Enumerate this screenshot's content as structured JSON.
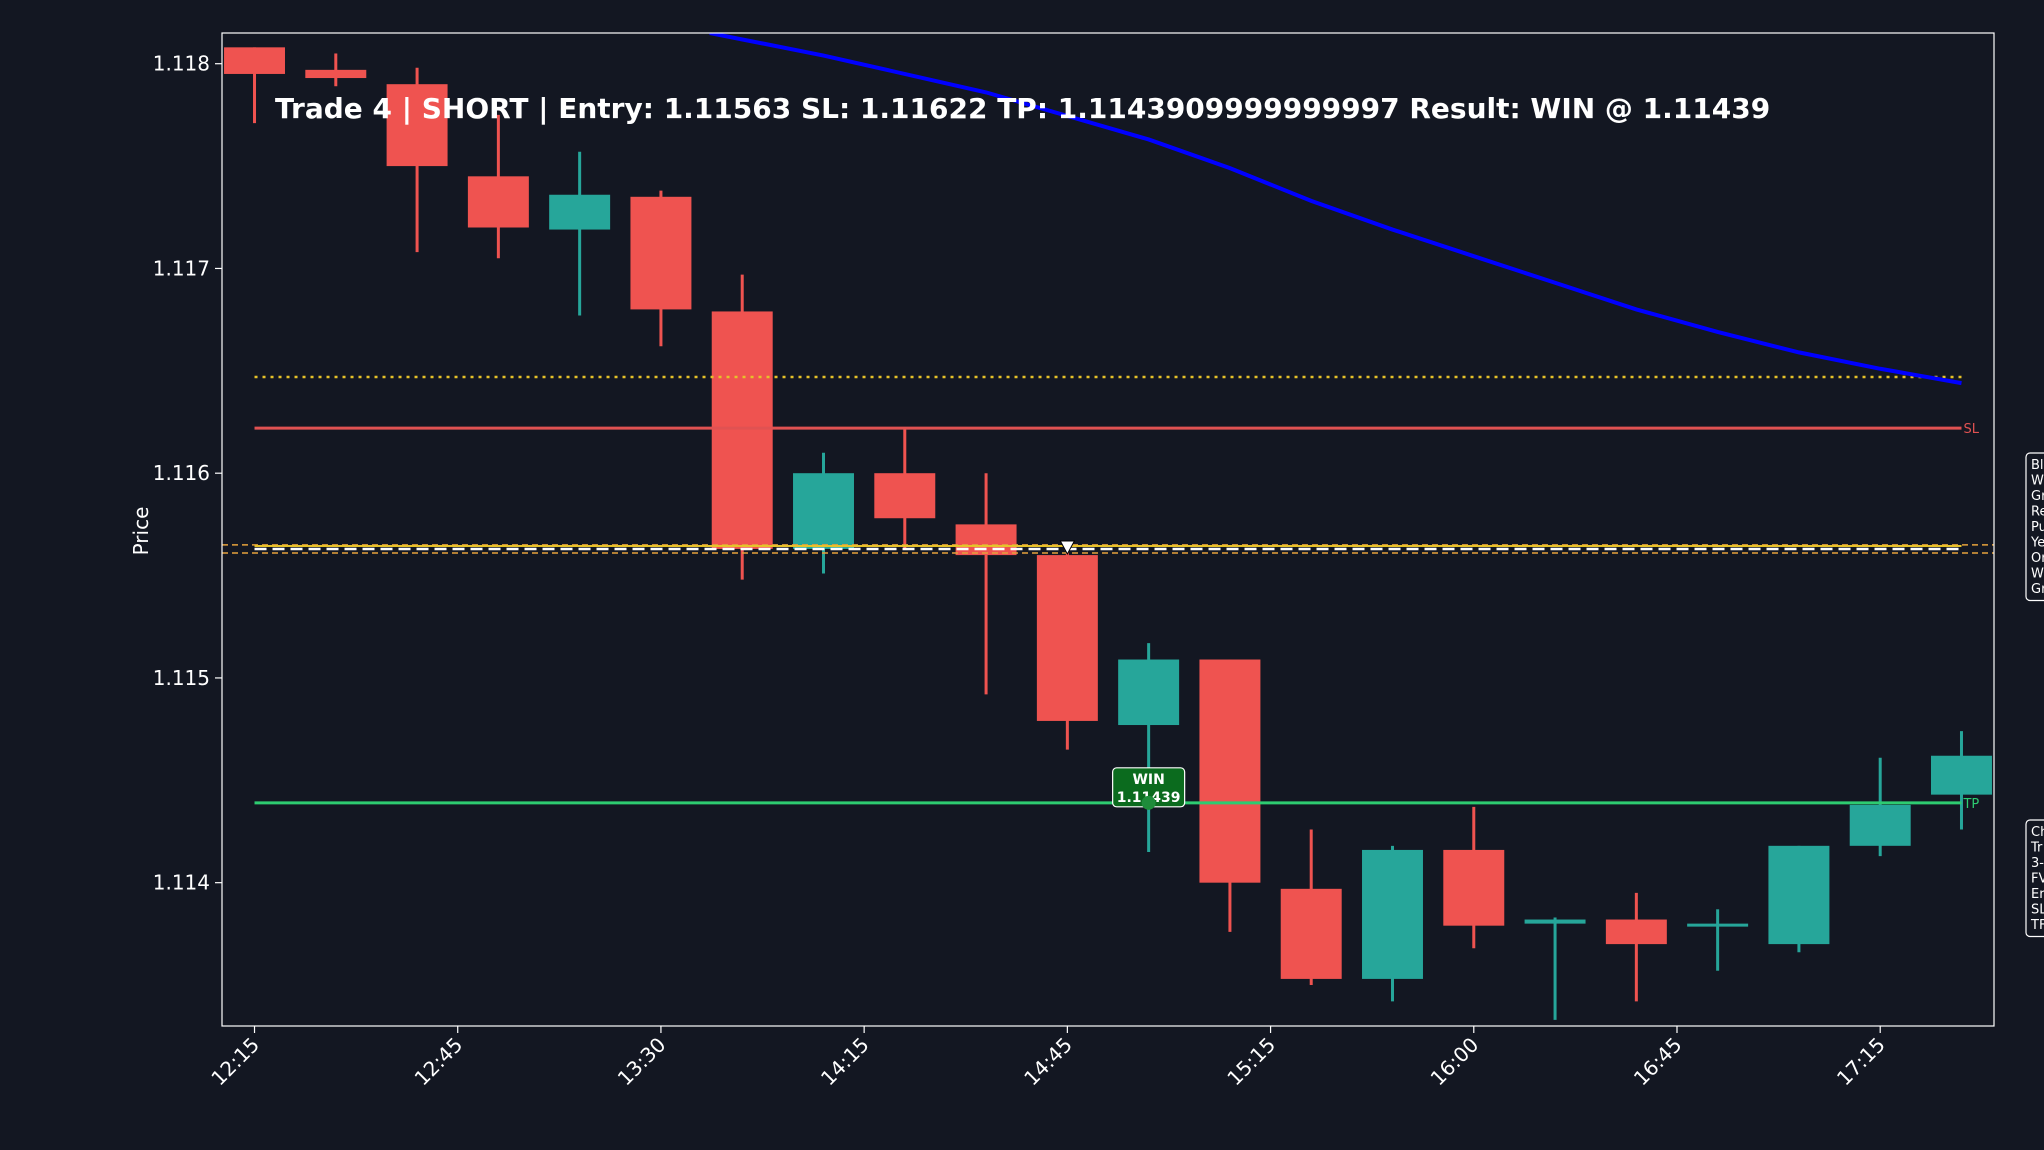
{
  "chart_data": {
    "type": "candlestick",
    "title": "Trade 4 | SHORT | Entry: 1.11563 SL: 1.11622 TP: 1.1143909999999997 Result: WIN @ 1.11439",
    "ylabel": "Price",
    "xlabel": "",
    "ylim": [
      1.1133,
      1.11815
    ],
    "y_ticks": [
      1.114,
      1.115,
      1.116,
      1.117,
      1.118
    ],
    "y_tick_labels": [
      "1.114",
      "1.115",
      "1.116",
      "1.117",
      "1.118"
    ],
    "x_tick_labels": [
      "12:15",
      "12:45",
      "13:30",
      "14:15",
      "14:45",
      "15:15",
      "16:00",
      "16:45",
      "17:15"
    ],
    "x_tick_indices": [
      0,
      2.5,
      5,
      7.5,
      10,
      12.5,
      15,
      17.5,
      20
    ],
    "x_range": [
      -0.4,
      21.4
    ],
    "candles": [
      {
        "o": 1.11808,
        "h": 1.11808,
        "l": 1.11771,
        "c": 1.11795
      },
      {
        "o": 1.11797,
        "h": 1.11805,
        "l": 1.11789,
        "c": 1.11793
      },
      {
        "o": 1.1179,
        "h": 1.11798,
        "l": 1.11708,
        "c": 1.1175
      },
      {
        "o": 1.11745,
        "h": 1.11775,
        "l": 1.11705,
        "c": 1.1172
      },
      {
        "o": 1.11719,
        "h": 1.11757,
        "l": 1.11677,
        "c": 1.11736
      },
      {
        "o": 1.11735,
        "h": 1.11738,
        "l": 1.11662,
        "c": 1.1168
      },
      {
        "o": 1.11679,
        "h": 1.11697,
        "l": 1.11548,
        "c": 1.11563
      },
      {
        "o": 1.11563,
        "h": 1.1161,
        "l": 1.11551,
        "c": 1.116
      },
      {
        "o": 1.116,
        "h": 1.11622,
        "l": 1.11563,
        "c": 1.11578
      },
      {
        "o": 1.11575,
        "h": 1.116,
        "l": 1.11492,
        "c": 1.1156
      },
      {
        "o": 1.1156,
        "h": 1.11563,
        "l": 1.11465,
        "c": 1.11479
      },
      {
        "o": 1.11477,
        "h": 1.11517,
        "l": 1.11415,
        "c": 1.11509
      },
      {
        "o": 1.11509,
        "h": 1.11509,
        "l": 1.11376,
        "c": 1.114
      },
      {
        "o": 1.11397,
        "h": 1.11426,
        "l": 1.1135,
        "c": 1.11353
      },
      {
        "o": 1.11353,
        "h": 1.11418,
        "l": 1.11342,
        "c": 1.11416
      },
      {
        "o": 1.11416,
        "h": 1.11437,
        "l": 1.11368,
        "c": 1.11379
      },
      {
        "o": 1.1138,
        "h": 1.11383,
        "l": 1.11333,
        "c": 1.11382
      },
      {
        "o": 1.11382,
        "h": 1.11395,
        "l": 1.11342,
        "c": 1.1137
      },
      {
        "o": 1.1138,
        "h": 1.11387,
        "l": 1.11357,
        "c": 1.1138
      },
      {
        "o": 1.1137,
        "h": 1.11418,
        "l": 1.11366,
        "c": 1.11418
      },
      {
        "o": 1.11418,
        "h": 1.11461,
        "l": 1.11413,
        "c": 1.11438
      },
      {
        "o": 1.11443,
        "h": 1.11474,
        "l": 1.11426,
        "c": 1.11462
      }
    ],
    "blue_line": {
      "color": "#0000ff",
      "points": [
        [
          5.6,
          1.11815
        ],
        [
          7,
          1.11804
        ],
        [
          9,
          1.11786
        ],
        [
          11,
          1.11763
        ],
        [
          12,
          1.11749
        ],
        [
          13,
          1.11733
        ],
        [
          14,
          1.11719
        ],
        [
          15,
          1.11706
        ],
        [
          16,
          1.11693
        ],
        [
          17,
          1.1168
        ],
        [
          18,
          1.11669
        ],
        [
          19,
          1.11659
        ],
        [
          20,
          1.11651
        ],
        [
          21,
          1.11644
        ]
      ]
    },
    "levels": {
      "yellow_dotted": {
        "value": 1.11647,
        "color": "#e6c229"
      },
      "sl": {
        "value": 1.11622,
        "color": "#e05252",
        "label": "SL"
      },
      "entry": {
        "value": 1.11563,
        "color": "#ffffff"
      },
      "zone_top": {
        "value": 1.11565,
        "color": "#e6a23c"
      },
      "zone_bottom": {
        "value": 1.11561,
        "color": "#e6a23c"
      },
      "tp": {
        "value": 1.11439,
        "color": "#2ecc71",
        "label": "TP"
      }
    },
    "entry_marker": {
      "x": 10,
      "y": 1.11563
    },
    "exit_marker": {
      "x": 11,
      "y": 1.11439,
      "label_line1": "WIN",
      "label_line2": "1.11439"
    },
    "colors": {
      "bull": "#26a69a",
      "bear": "#ef5350",
      "background": "#131722",
      "axes": "#ffffff",
      "win_box": "#0b6b1e"
    },
    "legend_right_1": [
      "Bl",
      "W",
      "Gr",
      "Re",
      "Pu",
      "Ye",
      "Or",
      "W",
      "Gr"
    ],
    "legend_right_2": [
      "Ch",
      "Tr",
      "3-",
      "FV",
      "Er",
      "SL",
      "TF"
    ]
  }
}
